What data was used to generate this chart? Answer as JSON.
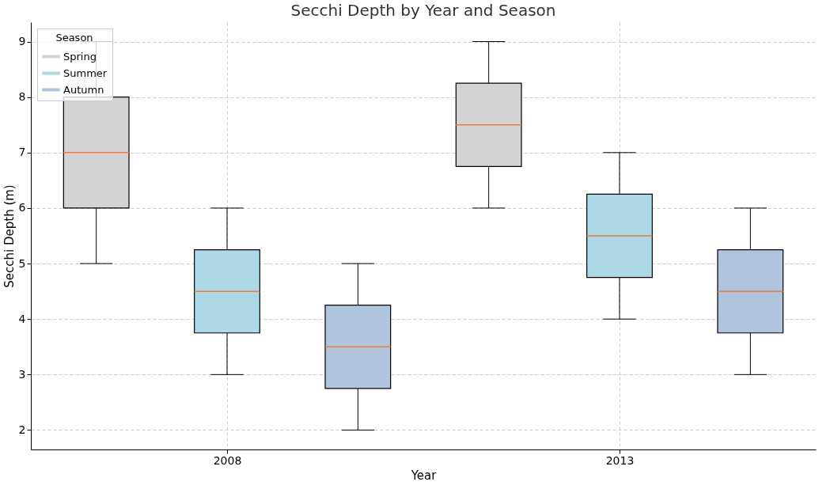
{
  "chart_data": {
    "type": "box",
    "title": "Secchi Depth by Year and Season",
    "xlabel": "Year",
    "ylabel": "Secchi Depth (m)",
    "legend_title": "Season",
    "categories": [
      null,
      "2008",
      null,
      null,
      "2013",
      null
    ],
    "series": [
      {
        "name": "Spring",
        "color": "#d3d3d3",
        "boxes": [
          {
            "low": 5,
            "q1": 6,
            "median": 7,
            "q3": 8,
            "high": 9
          },
          null,
          null,
          {
            "low": 6,
            "q1": 6.75,
            "median": 7.5,
            "q3": 8.25,
            "high": 9
          },
          null,
          null
        ]
      },
      {
        "name": "Summer",
        "color": "#add8e6",
        "boxes": [
          null,
          {
            "low": 3,
            "q1": 3.75,
            "median": 4.5,
            "q3": 5.25,
            "high": 6
          },
          null,
          null,
          {
            "low": 4,
            "q1": 4.75,
            "median": 5.5,
            "q3": 6.25,
            "high": 7
          },
          null
        ]
      },
      {
        "name": "Autumn",
        "color": "#b0c4de",
        "boxes": [
          null,
          null,
          {
            "low": 2,
            "q1": 2.75,
            "median": 3.5,
            "q3": 4.25,
            "high": 5
          },
          null,
          null,
          {
            "low": 3,
            "q1": 3.75,
            "median": 4.5,
            "q3": 5.25,
            "high": 6
          }
        ]
      }
    ],
    "ylim": [
      1.65,
      9.35
    ],
    "yticks": [
      2,
      3,
      4,
      5,
      6,
      7,
      8,
      9
    ],
    "grid": true,
    "legend": "top left"
  }
}
